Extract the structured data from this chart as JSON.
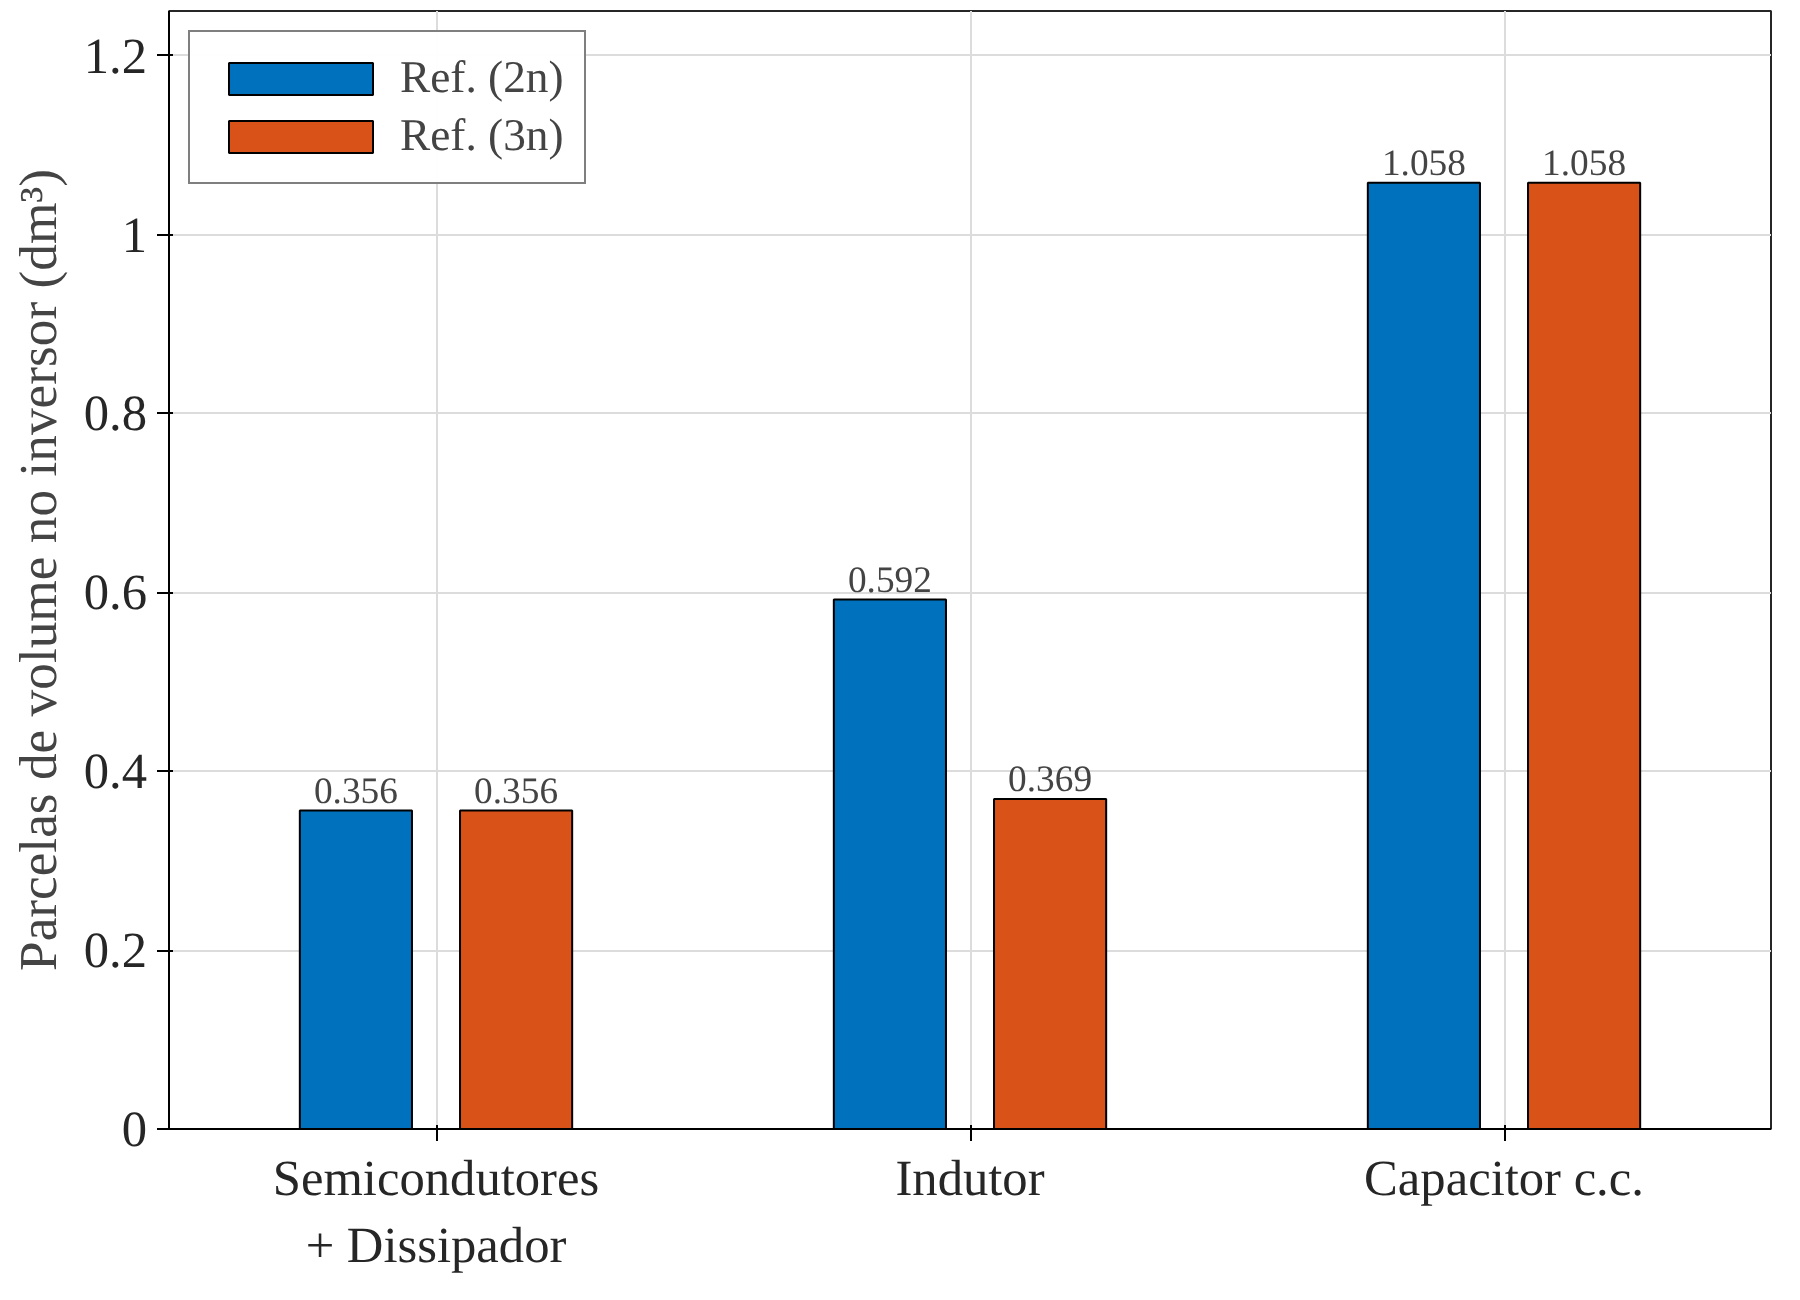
{
  "chart_data": {
    "type": "bar",
    "ylabel": "Parcelas de volume no inversor (dm³)",
    "categories": [
      "Semicondutores\n+ Dissipador",
      "Indutor",
      "Capacitor c.c."
    ],
    "series": [
      {
        "name": "Ref. (2n)",
        "color": "#0072bd",
        "values": [
          0.356,
          0.592,
          1.058
        ]
      },
      {
        "name": "Ref. (3n)",
        "color": "#d95319",
        "values": [
          0.356,
          0.369,
          1.058
        ]
      }
    ],
    "ylim": [
      0,
      1.25
    ],
    "yticks": [
      0,
      0.2,
      0.4,
      0.6,
      0.8,
      1,
      1.2
    ],
    "grid": true,
    "legend": "top left",
    "data_labels": true
  }
}
